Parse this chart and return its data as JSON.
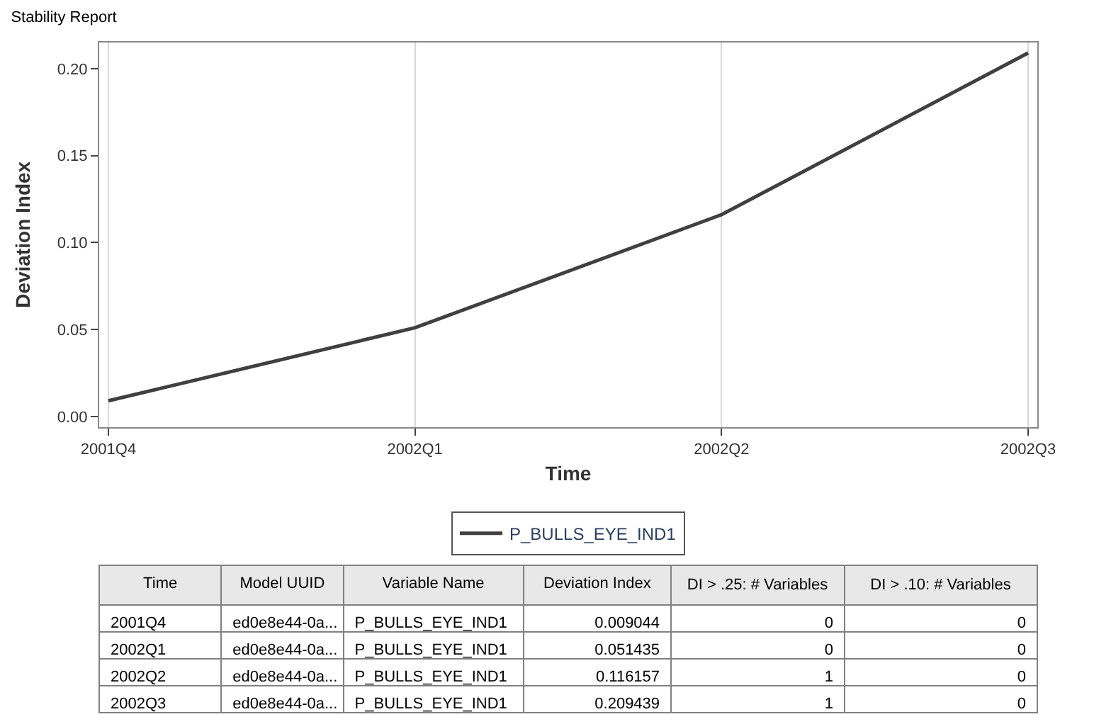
{
  "chart_data": {
    "type": "line",
    "title": "Stability Report",
    "xlabel": "Time",
    "ylabel": "Deviation Index",
    "categories": [
      "2001Q4",
      "2002Q1",
      "2002Q2",
      "2002Q3"
    ],
    "series": [
      {
        "name": "P_BULLS_EYE_IND1",
        "color": "#404040",
        "values": [
          0.009,
          0.051,
          0.116,
          0.209
        ]
      }
    ],
    "ylim": [
      -0.006,
      0.215
    ],
    "yticks": [
      {
        "value": 0,
        "label": "0.00"
      },
      {
        "value": 0.05,
        "label": "0.05"
      },
      {
        "value": 0.1,
        "label": "0.10"
      },
      {
        "value": 0.15,
        "label": "0.15"
      },
      {
        "value": 0.2,
        "label": "0.20"
      }
    ],
    "grid": "x",
    "legend": "bottom",
    "marker": "none",
    "line_style": "solid",
    "annotations": [
      "Time",
      "Model UUID",
      "Variable Name",
      "Deviation Index",
      "DI > .25: # Variables",
      "DI > .10: # Variables",
      "ed0e8e44-0a...",
      "P_BULLS_EYE_IND1",
      "0.009044",
      "0",
      "0",
      "ed0e8e44-0a...",
      "P_BULLS_EYE_IND1",
      "0.051435",
      "0",
      "0",
      "ed0e8e44-0a...",
      "P_BULLS_EYE_IND1",
      "0.116157",
      "1",
      "0",
      "ed0e8e44-0a...",
      "P_BULLS_EYE_IND1",
      "0.209439",
      "1",
      "0"
    ]
  }
}
